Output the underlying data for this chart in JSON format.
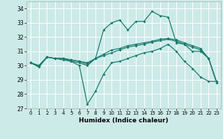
{
  "xlabel": "Humidex (Indice chaleur)",
  "xlim": [
    -0.5,
    23.5
  ],
  "ylim": [
    27,
    34.5
  ],
  "yticks": [
    27,
    28,
    29,
    30,
    31,
    32,
    33,
    34
  ],
  "xticks": [
    0,
    1,
    2,
    3,
    4,
    5,
    6,
    7,
    8,
    9,
    10,
    11,
    12,
    13,
    14,
    15,
    16,
    17,
    18,
    19,
    20,
    21,
    22,
    23
  ],
  "bg_color": "#cceae8",
  "line_color": "#1a7a6e",
  "grid_color": "#ffffff",
  "series": {
    "line1": [
      30.2,
      29.9,
      30.6,
      30.5,
      30.4,
      30.3,
      30.0,
      27.3,
      28.2,
      29.4,
      30.2,
      30.3,
      30.5,
      30.7,
      30.9,
      31.0,
      31.2,
      31.5,
      31.0,
      30.3,
      29.8,
      29.2,
      28.9,
      28.9
    ],
    "line2": [
      30.2,
      29.9,
      30.6,
      30.5,
      30.5,
      30.3,
      30.2,
      30.0,
      30.5,
      32.5,
      33.0,
      33.2,
      32.5,
      33.1,
      33.1,
      33.8,
      33.5,
      33.4,
      31.6,
      31.5,
      31.0,
      31.0,
      30.5,
      28.8
    ],
    "line3": [
      30.2,
      30.0,
      30.6,
      30.5,
      30.5,
      30.4,
      30.3,
      30.1,
      30.5,
      30.8,
      31.1,
      31.2,
      31.4,
      31.5,
      31.6,
      31.7,
      31.85,
      31.9,
      31.8,
      31.6,
      31.4,
      31.2,
      30.5,
      28.8
    ],
    "line4": [
      30.2,
      30.0,
      30.6,
      30.5,
      30.5,
      30.4,
      30.3,
      30.2,
      30.5,
      30.7,
      30.9,
      31.1,
      31.3,
      31.4,
      31.5,
      31.65,
      31.75,
      31.85,
      31.7,
      31.5,
      31.3,
      31.1,
      30.5,
      28.8
    ]
  }
}
